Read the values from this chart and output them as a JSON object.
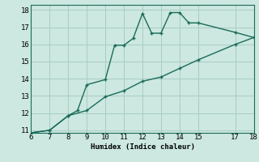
{
  "xlabel": "Humidex (Indice chaleur)",
  "background_color": "#cce8e0",
  "line_color": "#1a6b5a",
  "grid_color": "#a8ccc4",
  "x_upper_line": [
    6,
    7,
    8,
    8.5,
    9,
    10,
    10.5,
    11,
    11.5,
    12,
    12.5,
    13,
    13.5,
    14,
    14.5,
    15,
    17,
    18
  ],
  "y_upper_line": [
    10.85,
    11.0,
    11.85,
    12.15,
    13.65,
    13.95,
    15.95,
    15.95,
    16.35,
    17.8,
    16.65,
    16.65,
    17.85,
    17.85,
    17.25,
    17.25,
    16.7,
    16.4
  ],
  "x_lower_line": [
    6,
    7,
    8,
    9,
    10,
    11,
    12,
    13,
    14,
    15,
    17,
    18
  ],
  "y_lower_line": [
    10.85,
    11.0,
    11.85,
    12.15,
    12.95,
    13.3,
    13.85,
    14.1,
    14.6,
    15.1,
    16.0,
    16.4
  ],
  "xlim": [
    6,
    18
  ],
  "ylim": [
    10.85,
    18.3
  ],
  "xticks": [
    6,
    7,
    8,
    9,
    10,
    11,
    12,
    13,
    14,
    15,
    17,
    18
  ],
  "yticks": [
    11,
    12,
    13,
    14,
    15,
    16,
    17,
    18
  ],
  "fontsize": 6.5
}
